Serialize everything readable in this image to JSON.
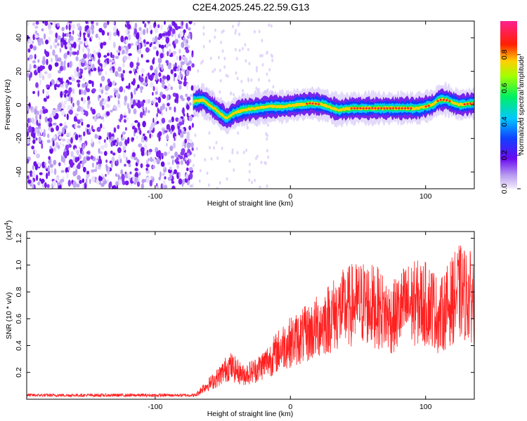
{
  "chart_data": [
    {
      "type": "heatmap",
      "title": "C2E4.2025.245.22.59.G13",
      "xlabel": "Height of straight line (km)",
      "ylabel": "Frequency (Hz)",
      "xlim": [
        -195,
        136
      ],
      "ylim": [
        -50,
        50
      ],
      "x_ticks": [
        -100,
        0,
        100
      ],
      "y_ticks": [
        -40,
        -20,
        0,
        20,
        40
      ],
      "colorbar": {
        "label": "Normalized spectral amplitude",
        "range": [
          0,
          1
        ],
        "ticks": [
          "0.0",
          "0.2",
          "0.4",
          "0.6",
          "0.8"
        ],
        "colormap": "rainbow (white-purple-blue-cyan-green-yellow-red-magenta)"
      },
      "noise_region_x": [
        -195,
        -72
      ],
      "ridge": {
        "x": [
          -72,
          -65,
          -58,
          -52,
          -47,
          -42,
          -35,
          -25,
          -15,
          -5,
          5,
          15,
          25,
          35,
          45,
          55,
          65,
          75,
          85,
          95,
          105,
          110,
          115,
          125,
          136
        ],
        "freq": [
          2,
          3,
          -1,
          -5,
          -8,
          -5,
          -3,
          -2,
          -1,
          -1,
          0,
          1,
          0,
          -3,
          -2,
          -2,
          -2,
          -2,
          -2,
          -2,
          0,
          3,
          3,
          0,
          1
        ]
      }
    },
    {
      "type": "line",
      "title": "",
      "xlabel": "Height of straight line (km)",
      "ylabel": "SNR (10 * v/v)",
      "y_multiplier": "(x10⁴)",
      "y_multiplier_base": "(x10",
      "y_multiplier_exp": "4",
      "y_multiplier_tail": ")",
      "xlim": [
        -195,
        136
      ],
      "ylim": [
        0,
        1.25
      ],
      "x_ticks": [
        -100,
        0,
        100
      ],
      "y_ticks": [
        0.2,
        0.4,
        0.6,
        0.8,
        1.0,
        1.2
      ],
      "y_tick_labels": [
        "0.2",
        "0.4",
        "0.6",
        "0.8",
        "1.0",
        "1.2"
      ],
      "series": [
        {
          "color": "#ff2020",
          "trend_x": [
            -195,
            -70,
            -65,
            -55,
            -45,
            -35,
            -25,
            -15,
            -5,
            5,
            15,
            25,
            35,
            45,
            55,
            65,
            75,
            85,
            95,
            105,
            110,
            115,
            125,
            136
          ],
          "trend_y": [
            0.03,
            0.03,
            0.08,
            0.15,
            0.25,
            0.18,
            0.22,
            0.3,
            0.4,
            0.45,
            0.5,
            0.58,
            0.65,
            0.7,
            0.72,
            0.68,
            0.6,
            0.7,
            0.72,
            0.7,
            0.6,
            0.68,
            0.8,
            0.75
          ]
        }
      ]
    }
  ]
}
